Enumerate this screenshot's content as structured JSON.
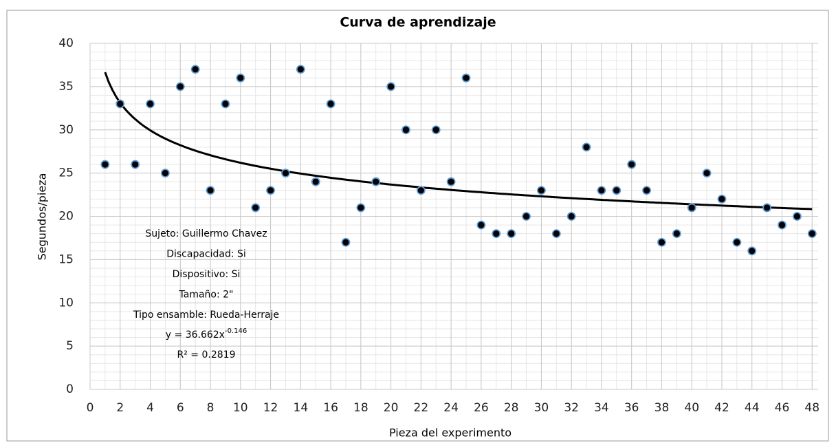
{
  "chart_data": {
    "type": "scatter",
    "title": "Curva de aprendizaje",
    "x_label": "Pieza del experimento",
    "y_label": "Segundos/pieza",
    "x": [
      1,
      2,
      3,
      4,
      5,
      6,
      7,
      8,
      9,
      10,
      11,
      12,
      13,
      14,
      15,
      16,
      17,
      18,
      19,
      20,
      21,
      22,
      23,
      24,
      25,
      26,
      27,
      28,
      29,
      30,
      31,
      32,
      33,
      34,
      35,
      36,
      37,
      38,
      39,
      40,
      41,
      42,
      43,
      44,
      45,
      46,
      47,
      48
    ],
    "values": [
      26,
      33,
      26,
      33,
      25,
      35,
      37,
      23,
      33,
      36,
      21,
      23,
      25,
      37,
      24,
      33,
      17,
      21,
      24,
      35,
      30,
      23,
      30,
      24,
      36,
      19,
      18,
      18,
      20,
      23,
      18,
      20,
      28,
      23,
      23,
      26,
      23,
      17,
      18,
      21,
      25,
      22,
      17,
      16,
      21,
      19,
      20,
      18
    ],
    "marker_fill": "#000000",
    "marker_edge": "#5b9bd5",
    "trendline": {
      "coefficient": 36.662,
      "exponent": -0.146,
      "color": "#000000"
    },
    "xlim": [
      0,
      48.4
    ],
    "ylim": [
      0,
      40
    ],
    "xticks": [
      0,
      2,
      4,
      6,
      8,
      10,
      12,
      14,
      16,
      18,
      20,
      22,
      24,
      26,
      28,
      30,
      32,
      34,
      36,
      38,
      40,
      42,
      44,
      46,
      48
    ],
    "yticks": [
      0,
      5,
      10,
      15,
      20,
      25,
      30,
      35,
      40
    ],
    "x_minor_step": 1,
    "y_minor_step": 1,
    "grid": true,
    "annotations": [
      "Sujeto:  Guillermo  Chavez",
      "Discapacidad:  Si",
      "Dispositivo:  Si",
      "Tamaño:  2\"",
      "Tipo  ensamble:  Rueda-Herraje"
    ],
    "equation": {
      "text": "y  =  36.662x",
      "superscript": "-0.146"
    },
    "r_squared": "R²  =  0.2819"
  }
}
